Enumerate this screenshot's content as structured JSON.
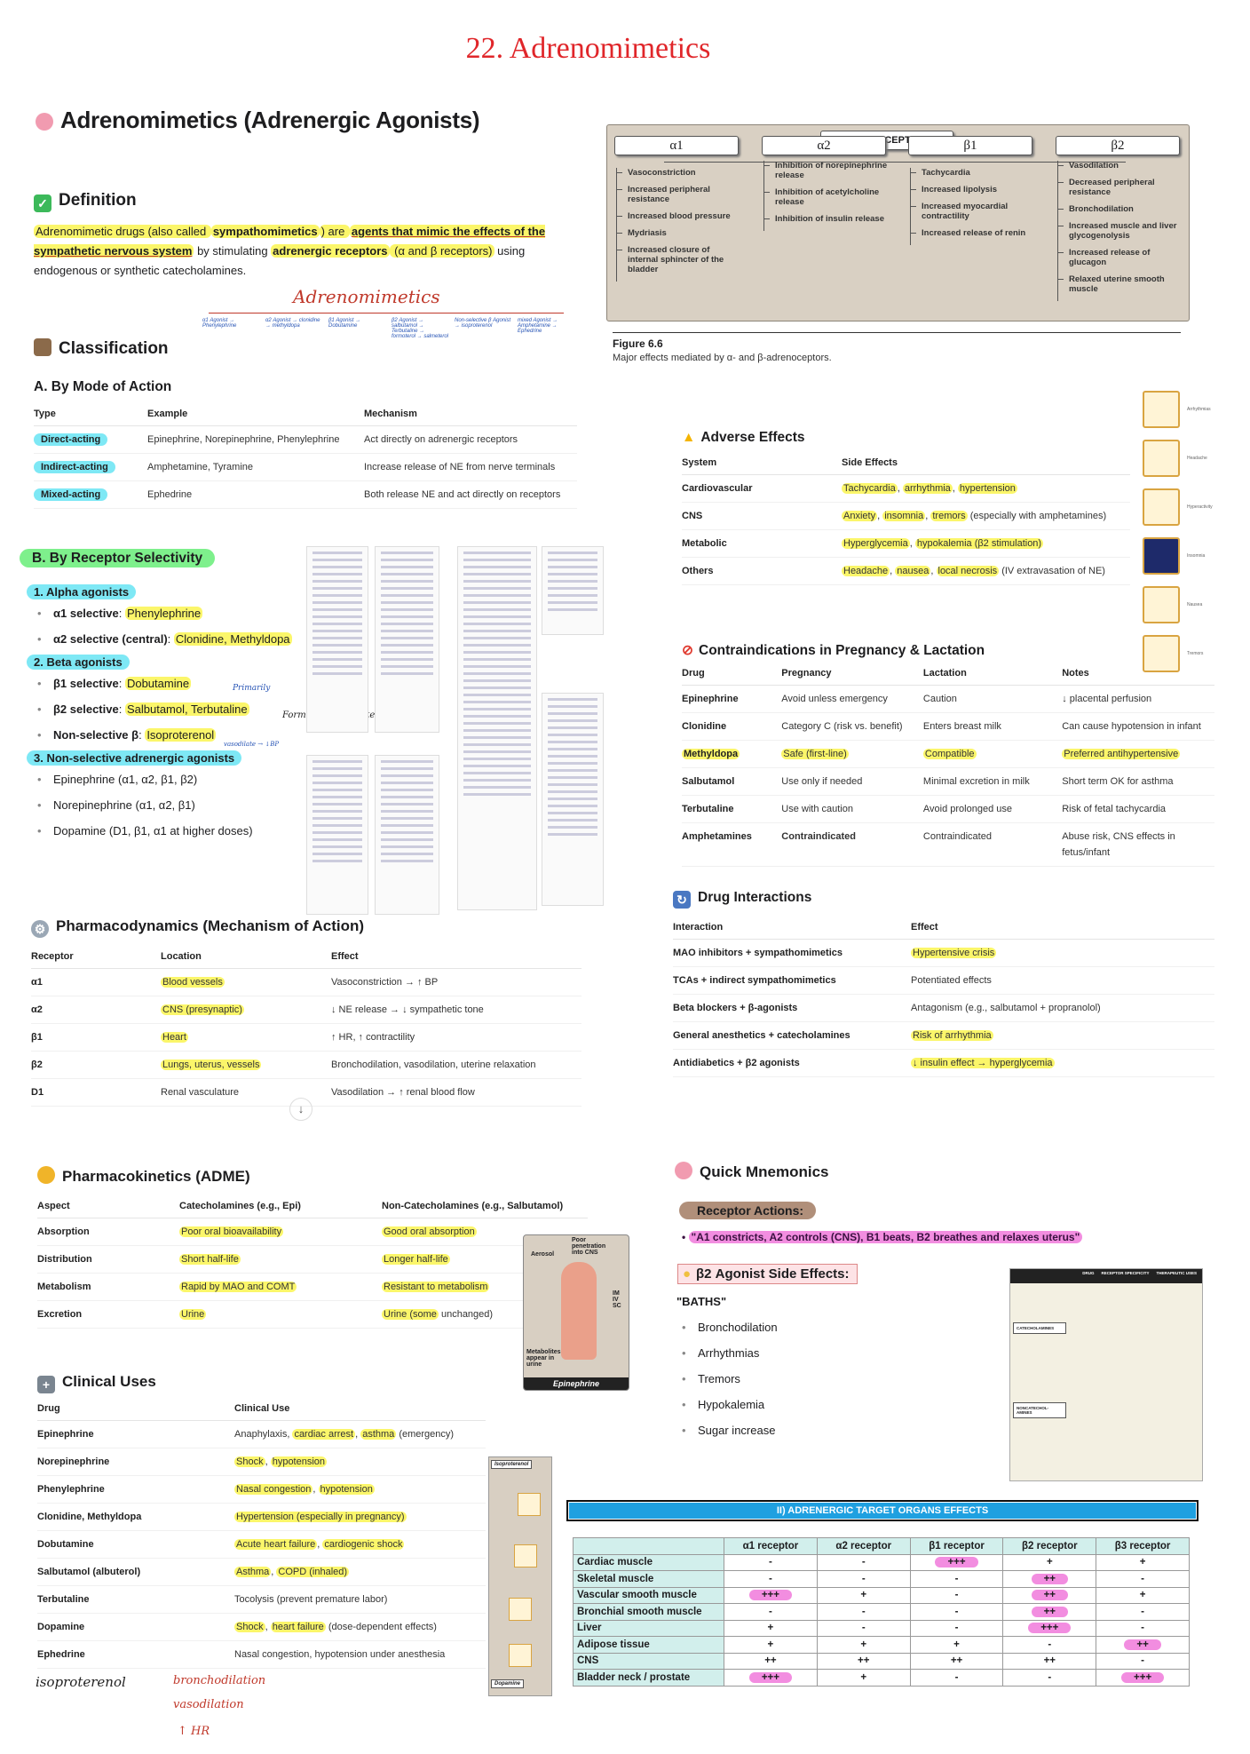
{
  "page_title": "22. Adrenomimetics",
  "main_heading": "Adrenomimetics (Adrenergic Agonists)",
  "definition": {
    "heading": "Definition",
    "segments": [
      {
        "t": "Adrenomimetic drugs (also called ",
        "s": "y"
      },
      {
        "t": "sympathomimetics",
        "s": "yb"
      },
      {
        "t": ") are ",
        "s": "y"
      },
      {
        "t": "agents that mimic the effects of the sympathetic nervous system",
        "s": "ybu"
      },
      {
        "t": " by stimulating ",
        "s": ""
      },
      {
        "t": "adrenergic receptors",
        "s": "yb"
      },
      {
        "t": " (α and β receptors)",
        "s": "y"
      },
      {
        "t": " using endogenous or synthetic catecholamines.",
        "s": ""
      }
    ]
  },
  "handwritten_tree": {
    "root": "Adrenomimetics",
    "branches": [
      "α1 Agonist → Phenylephrine",
      "α2 Agonist → clonidine → methyldopa",
      "β1 Agonist → Dobutamine",
      "β2 Agonist → salbutamol → Terbutaline → formoterol → salmeterol",
      "Non-selective β Agonist → isoproterenol",
      "mixed Agonist → Amphetamine → Ephedrine"
    ]
  },
  "classification": {
    "heading": "Classification",
    "mode": {
      "heading": "A. By Mode of Action",
      "columns": [
        "Type",
        "Example",
        "Mechanism"
      ],
      "rows": [
        [
          "Direct-acting",
          "Epinephrine, Norepinephrine, Phenylephrine",
          "Act directly on adrenergic receptors"
        ],
        [
          "Indirect-acting",
          "Amphetamine, Tyramine",
          "Increase release of NE from nerve terminals"
        ],
        [
          "Mixed-acting",
          "Ephedrine",
          "Both release NE and act directly on receptors"
        ]
      ]
    },
    "selectivity": {
      "heading": "B. By Receptor Selectivity",
      "groups": [
        {
          "title": "1. Alpha agonists",
          "items": [
            {
              "label": "α1 selective",
              "drugs": "Phenylephrine"
            },
            {
              "label": "α2 selective (central)",
              "drugs": "Clonidine, Methyldopa"
            }
          ]
        },
        {
          "title": "2. Beta agonists",
          "items": [
            {
              "label": "β1 selective",
              "drugs": "Dobutamine"
            },
            {
              "label": "β2 selective",
              "drugs": "Salbutamol, Terbutaline"
            },
            {
              "label": "Non-selective β",
              "drugs": "Isoproterenol"
            }
          ]
        },
        {
          "title": "3. Non-selective adrenergic agonists",
          "items": [
            {
              "label": "",
              "drugs": "Epinephrine (α1, α2, β1, β2)"
            },
            {
              "label": "",
              "drugs": "Norepinephrine (α1, α2, β1)"
            },
            {
              "label": "",
              "drugs": "Dopamine (D1, β1, α1 at higher doses)"
            }
          ]
        }
      ]
    },
    "notes": {
      "beta1": "Primarily",
      "beta2": "Formoterol, Salmeterol",
      "iso": "vasodilate → ↓BP"
    }
  },
  "adrenoceptor_figure": {
    "title": "ADRENOCEPTORS",
    "receptors": [
      {
        "name": "α1",
        "effects": [
          "Vasoconstriction",
          "Increased peripheral resistance",
          "Increased blood pressure",
          "Mydriasis",
          "Increased closure of internal sphincter of the bladder"
        ]
      },
      {
        "name": "α2",
        "effects": [
          "Inhibition of norepinephrine release",
          "Inhibition of acetylcholine release",
          "Inhibition of insulin release"
        ]
      },
      {
        "name": "β1",
        "effects": [
          "Tachycardia",
          "Increased lipolysis",
          "Increased myocardial contractility",
          "Increased release of renin"
        ]
      },
      {
        "name": "β2",
        "effects": [
          "Vasodilation",
          "Decreased peripheral resistance",
          "Bronchodilation",
          "Increased muscle and liver glycogenolysis",
          "Increased release of glucagon",
          "Relaxed uterine smooth muscle"
        ]
      }
    ],
    "caption_title": "Figure 6.6",
    "caption": "Major effects mediated by α- and β-adrenoceptors."
  },
  "adverse": {
    "heading": "Adverse Effects",
    "columns": [
      "System",
      "Side Effects"
    ],
    "rows": [
      [
        "Cardiovascular",
        [
          [
            "Tachycardia",
            "y"
          ],
          [
            ", ",
            ""
          ],
          [
            "arrhythmia",
            "y"
          ],
          [
            ", ",
            ""
          ],
          [
            "hypertension",
            "y"
          ]
        ]
      ],
      [
        "CNS",
        [
          [
            "Anxiety",
            "y"
          ],
          [
            ", ",
            ""
          ],
          [
            "insomnia",
            "y"
          ],
          [
            ", ",
            ""
          ],
          [
            "tremors",
            "y"
          ],
          [
            " (especially with amphetamines)",
            ""
          ]
        ]
      ],
      [
        "Metabolic",
        [
          [
            "Hyperglycemia",
            "y"
          ],
          [
            ", ",
            ""
          ],
          [
            "hypokalemia (β2 stimulation)",
            "y"
          ]
        ]
      ],
      [
        "Others",
        [
          [
            "Headache",
            "y"
          ],
          [
            ", ",
            ""
          ],
          [
            "nausea",
            "y"
          ],
          [
            ", ",
            ""
          ],
          [
            "local necrosis",
            "y"
          ],
          [
            " (IV extravasation of NE)",
            ""
          ]
        ]
      ]
    ],
    "icons": [
      "Arrhythmias",
      "Headache",
      "Hyperactivity",
      "Insomnia",
      "Nausea",
      "Tremors"
    ]
  },
  "pregnancy": {
    "heading": "Contraindications in Pregnancy & Lactation",
    "columns": [
      "Drug",
      "Pregnancy",
      "Lactation",
      "Notes"
    ],
    "rows": [
      [
        "Epinephrine",
        "Avoid unless emergency",
        "Caution",
        "↓ placental perfusion"
      ],
      [
        "Clonidine",
        "Category C (risk vs. benefit)",
        "Enters breast milk",
        "Can cause hypotension in infant"
      ],
      [
        [
          [
            "Methyldopa",
            "y"
          ]
        ],
        [
          [
            "Safe (first-line)",
            "y"
          ]
        ],
        [
          [
            "Compatible",
            "y"
          ]
        ],
        [
          [
            "Preferred antihypertensive",
            "y"
          ]
        ]
      ],
      [
        "Salbutamol",
        "Use only if needed",
        "Minimal excretion in milk",
        "Short term OK for asthma"
      ],
      [
        "Terbutaline",
        "Use with caution",
        "Avoid prolonged use",
        "Risk of fetal tachycardia"
      ],
      [
        "Amphetamines",
        [
          [
            "Contraindicated",
            "b"
          ]
        ],
        "Contraindicated",
        "Abuse risk, CNS effects in fetus/infant"
      ]
    ]
  },
  "interactions": {
    "heading": "Drug Interactions",
    "columns": [
      "Interaction",
      "Effect"
    ],
    "rows": [
      [
        "MAO inhibitors + sympathomimetics",
        [
          [
            "Hypertensive crisis",
            "y"
          ]
        ]
      ],
      [
        "TCAs + indirect sympathomimetics",
        "Potentiated effects"
      ],
      [
        "Beta blockers + β-agonists",
        "Antagonism (e.g., salbutamol + propranolol)"
      ],
      [
        "General anesthetics + catecholamines",
        [
          [
            "Risk of arrhythmia",
            "y"
          ]
        ]
      ],
      [
        "Antidiabetics + β2 agonists",
        [
          [
            "↓ insulin effect → hyperglycemia",
            "y"
          ]
        ]
      ]
    ]
  },
  "pharmacodynamics": {
    "heading": "Pharmacodynamics (Mechanism of Action)",
    "columns": [
      "Receptor",
      "Location",
      "Effect"
    ],
    "rows": [
      [
        "α1",
        [
          [
            "Blood vessels",
            "y"
          ]
        ],
        "Vasoconstriction → ↑ BP"
      ],
      [
        "α2",
        [
          [
            "CNS (presynaptic)",
            "y"
          ]
        ],
        "↓ NE release → ↓ sympathetic tone"
      ],
      [
        "β1",
        [
          [
            "Heart",
            "y"
          ]
        ],
        "↑ HR, ↑ contractility"
      ],
      [
        "β2",
        [
          [
            "Lungs, uterus, vessels",
            "y"
          ]
        ],
        "Bronchodilation, vasodilation, uterine relaxation"
      ],
      [
        "D1",
        "Renal vasculature",
        "Vasodilation → ↑ renal blood flow"
      ]
    ]
  },
  "pharmacokinetics": {
    "heading": "Pharmacokinetics (ADME)",
    "columns": [
      "Aspect",
      "Catecholamines (e.g., Epi)",
      "Non-Catecholamines (e.g., Salbutamol)"
    ],
    "rows": [
      [
        "Absorption",
        [
          [
            "Poor oral bioavailability",
            "y"
          ]
        ],
        [
          [
            "Good oral absorption",
            "y"
          ]
        ]
      ],
      [
        "Distribution",
        [
          [
            "Short half-life",
            "y"
          ]
        ],
        [
          [
            "Longer half-life",
            "y"
          ]
        ]
      ],
      [
        "Metabolism",
        [
          [
            "Rapid by MAO and COMT",
            "y"
          ]
        ],
        [
          [
            "Resistant to metabolism",
            "y"
          ]
        ]
      ],
      [
        "Excretion",
        [
          [
            "Urine",
            "y"
          ]
        ],
        [
          [
            "Urine (some",
            "y"
          ],
          [
            " unchanged)",
            ""
          ]
        ]
      ]
    ],
    "figure": {
      "labels": [
        "Aerosol",
        "Poor penetration into CNS",
        "IM IV SC",
        "Metabolites appear in urine"
      ],
      "caption": "Epinephrine"
    }
  },
  "clinical": {
    "heading": "Clinical Uses",
    "columns": [
      "Drug",
      "Clinical Use"
    ],
    "rows": [
      [
        "Epinephrine",
        [
          [
            "Anaphylaxis, ",
            ""
          ],
          [
            "cardiac arrest",
            "y"
          ],
          [
            ", ",
            ""
          ],
          [
            "asthma",
            "y"
          ],
          [
            " (emergency)",
            ""
          ]
        ]
      ],
      [
        "Norepinephrine",
        [
          [
            "Shock",
            "y"
          ],
          [
            ", ",
            ""
          ],
          [
            "hypotension",
            "y"
          ]
        ]
      ],
      [
        "Phenylephrine",
        [
          [
            "Nasal congestion",
            "y"
          ],
          [
            ", ",
            ""
          ],
          [
            "hypotension",
            "y"
          ]
        ]
      ],
      [
        "Clonidine, Methyldopa",
        [
          [
            "Hypertension (especially in pregnancy)",
            "y"
          ]
        ]
      ],
      [
        "Dobutamine",
        [
          [
            "Acute heart failure",
            "y"
          ],
          [
            ", ",
            ""
          ],
          [
            "cardiogenic shock",
            "y"
          ]
        ]
      ],
      [
        "Salbutamol (albuterol)",
        [
          [
            "Asthma",
            "y"
          ],
          [
            ", ",
            ""
          ],
          [
            "COPD (inhaled)",
            "y"
          ]
        ]
      ],
      [
        "Terbutaline",
        "Tocolysis (prevent premature labor)"
      ],
      [
        "Dopamine",
        [
          [
            "Shock",
            "y"
          ],
          [
            ", ",
            ""
          ],
          [
            "heart failure",
            "y"
          ],
          [
            " (dose-dependent effects)",
            ""
          ]
        ]
      ],
      [
        "Ephedrine",
        "Nasal congestion, hypotension under anesthesia"
      ]
    ],
    "figure": {
      "top": "Isoproterenol",
      "bottom": "Dopamine"
    },
    "handwritten": {
      "drug": "isoproterenol",
      "effects": [
        "bronchodilation",
        "vasodilation",
        "↑ HR"
      ]
    }
  },
  "mnemonics": {
    "heading": "Quick Mnemonics",
    "receptor_actions": {
      "title": "Receptor Actions:",
      "text": "\"A1 constricts, A2 controls (CNS), B1 beats, B2 breathes and relaxes uterus\""
    },
    "b2": {
      "title": "β2 Agonist Side Effects:",
      "acronym": "\"BATHS\"",
      "items": [
        "Bronchodilation",
        "Arrhythmias",
        "Tremors",
        "Hypokalemia",
        "Sugar increase"
      ]
    },
    "drug_table_headers": [
      "DRUG",
      "RECEPTOR SPECIFICITY",
      "THERAPEUTIC USES"
    ],
    "drug_table_groups": [
      "CATECHOLAMINES",
      "NONCATECHOL-AMINES"
    ]
  },
  "organ_effects": {
    "banner": "II)  ADRENERGIC TARGET ORGANS EFFECTS",
    "columns": [
      "",
      "α1 receptor",
      "α2 receptor",
      "β1 receptor",
      "β2 receptor",
      "β3 receptor"
    ],
    "rows": [
      [
        "Cardiac muscle",
        "-",
        "-",
        "+++",
        "+",
        "+"
      ],
      [
        "Skeletal muscle",
        "-",
        "-",
        "-",
        "++",
        "-"
      ],
      [
        "Vascular smooth muscle",
        "+++",
        "+",
        "-",
        "++",
        "+"
      ],
      [
        "Bronchial smooth muscle",
        "-",
        "-",
        "-",
        "++",
        "-"
      ],
      [
        "Liver",
        "+",
        "-",
        "-",
        "+++",
        "-"
      ],
      [
        "Adipose tissue",
        "+",
        "+",
        "+",
        "-",
        "++"
      ],
      [
        "CNS",
        "++",
        "++",
        "++",
        "++",
        "-"
      ],
      [
        "Bladder neck / prostate",
        "+++",
        "+",
        "-",
        "-",
        "+++"
      ]
    ],
    "highlighted": [
      [
        0,
        3
      ],
      [
        1,
        4
      ],
      [
        2,
        1
      ],
      [
        2,
        4
      ],
      [
        3,
        4
      ],
      [
        4,
        4
      ],
      [
        5,
        5
      ],
      [
        7,
        1
      ],
      [
        7,
        5
      ]
    ]
  },
  "colors": {
    "title": "#e0262a",
    "highlight_yellow": "#fbf66a",
    "highlight_pink": "#f28de0",
    "highlight_cyan": "#7ee8f5",
    "highlight_green": "#7ef08c",
    "banner_blue": "#1fa0e0",
    "table_teal": "#d2efec"
  }
}
